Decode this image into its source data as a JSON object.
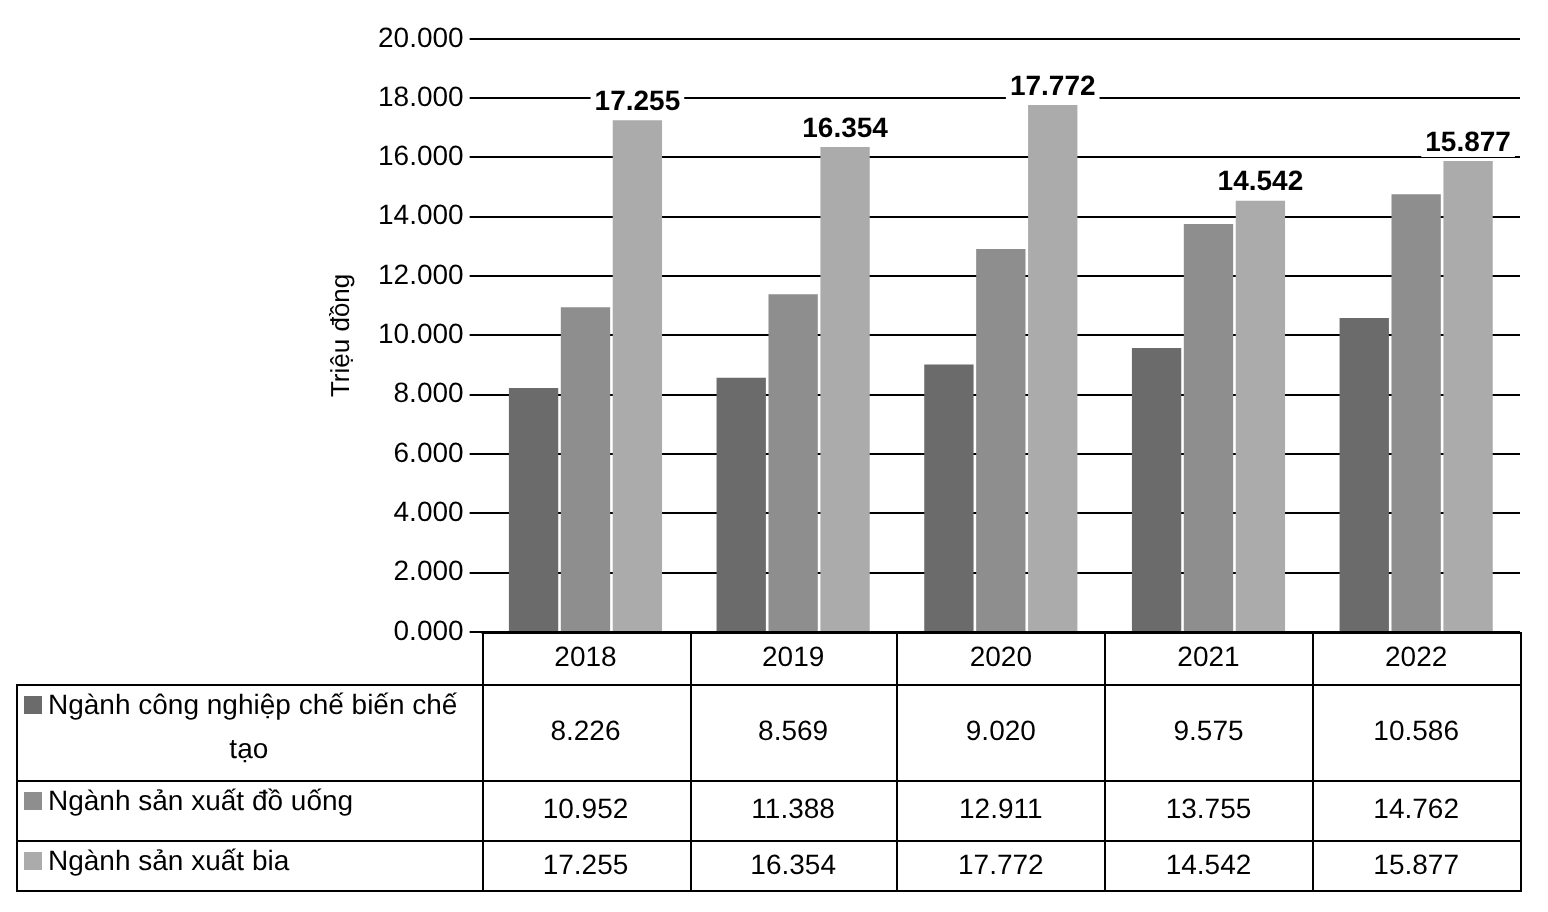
{
  "chart_data": {
    "type": "bar",
    "ylabel": "Triệu đồng",
    "categories": [
      "2018",
      "2019",
      "2020",
      "2021",
      "2022"
    ],
    "series": [
      {
        "name": "Ngành công nghiệp chế biến chế tạo",
        "color": "#6b6b6b",
        "values": [
          8.226,
          8.569,
          9.02,
          9.575,
          10.586
        ],
        "value_labels": [
          "8.226",
          "8.569",
          "9.020",
          "9.575",
          "10.586"
        ]
      },
      {
        "name": "Ngành sản xuất đồ uống",
        "color": "#8e8e8e",
        "values": [
          10.952,
          11.388,
          12.911,
          13.755,
          14.762
        ],
        "value_labels": [
          "10.952",
          "11.388",
          "12.911",
          "13.755",
          "14.762"
        ]
      },
      {
        "name": "Ngành sản xuất bia",
        "color": "#ababab",
        "values": [
          17.255,
          16.354,
          17.772,
          14.542,
          15.877
        ],
        "value_labels": [
          "17.255",
          "16.354",
          "17.772",
          "14.542",
          "15.877"
        ]
      }
    ],
    "ylim": [
      0,
      20
    ],
    "yticks": [
      {
        "value": 0,
        "label": "0.000"
      },
      {
        "value": 2,
        "label": "2.000"
      },
      {
        "value": 4,
        "label": "4.000"
      },
      {
        "value": 6,
        "label": "6.000"
      },
      {
        "value": 8,
        "label": "8.000"
      },
      {
        "value": 10,
        "label": "10.000"
      },
      {
        "value": 12,
        "label": "12.000"
      },
      {
        "value": 14,
        "label": "14.000"
      },
      {
        "value": 16,
        "label": "16.000"
      },
      {
        "value": 18,
        "label": "18.000"
      },
      {
        "value": 20,
        "label": "20.000"
      }
    ],
    "grid": "y",
    "legend": "bottom",
    "annotations": [
      "17.255",
      "16.354",
      "17.772",
      "14.542",
      "15.877"
    ]
  }
}
